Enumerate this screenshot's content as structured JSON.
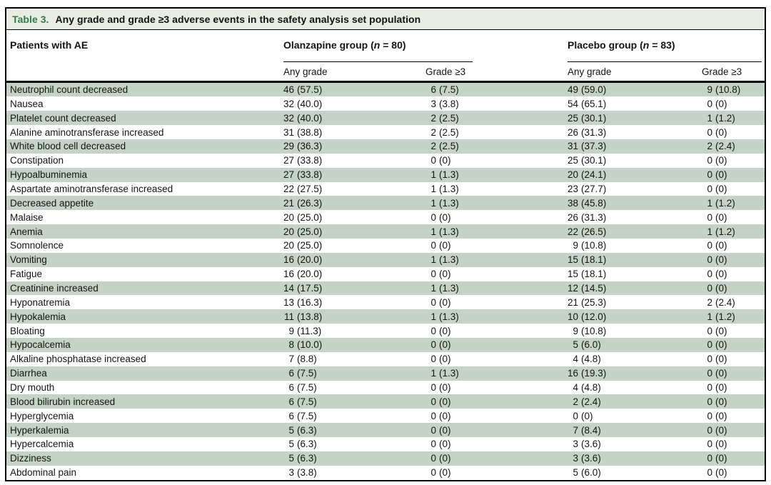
{
  "colors": {
    "caption_bar_bg": "#e8ece3",
    "table_label_green": "#2e7d4b",
    "row_stripe_green": "#c5d3c6",
    "rule_black": "#000000"
  },
  "table": {
    "label": "Table 3.",
    "title": "Any grade and grade ≥3 adverse events in the safety analysis set population",
    "col1_header": "Patients with AE",
    "groups": [
      {
        "prefix": "Olanzapine group (",
        "n": "n",
        "suffix": " = 80)"
      },
      {
        "prefix": "Placebo group (",
        "n": "n",
        "suffix": " = 83)"
      }
    ],
    "subheaders": [
      "Any grade",
      "Grade ≥3",
      "Any grade",
      "Grade ≥3"
    ],
    "rows": [
      {
        "ae": "Neutrophil count decreased",
        "values": [
          "46 (57.5)",
          "6 (7.5)",
          "49 (59.0)",
          "9 (10.8)"
        ]
      },
      {
        "ae": "Nausea",
        "values": [
          "32 (40.0)",
          "3 (3.8)",
          "54 (65.1)",
          "0 (0)"
        ]
      },
      {
        "ae": "Platelet count decreased",
        "values": [
          "32 (40.0)",
          "2 (2.5)",
          "25 (30.1)",
          "1 (1.2)"
        ]
      },
      {
        "ae": "Alanine aminotransferase increased",
        "values": [
          "31 (38.8)",
          "2 (2.5)",
          "26 (31.3)",
          "0 (0)"
        ]
      },
      {
        "ae": "White blood cell decreased",
        "values": [
          "29 (36.3)",
          "2 (2.5)",
          "31 (37.3)",
          "2 (2.4)"
        ]
      },
      {
        "ae": "Constipation",
        "values": [
          "27 (33.8)",
          "0 (0)",
          "25 (30.1)",
          "0 (0)"
        ]
      },
      {
        "ae": "Hypoalbuminemia",
        "values": [
          "27 (33.8)",
          "1 (1.3)",
          "20 (24.1)",
          "0 (0)"
        ]
      },
      {
        "ae": "Aspartate aminotransferase increased",
        "values": [
          "22 (27.5)",
          "1 (1.3)",
          "23 (27.7)",
          "0 (0)"
        ]
      },
      {
        "ae": "Decreased appetite",
        "values": [
          "21 (26.3)",
          "1 (1.3)",
          "38 (45.8)",
          "1 (1.2)"
        ]
      },
      {
        "ae": "Malaise",
        "values": [
          "20 (25.0)",
          "0 (0)",
          "26 (31.3)",
          "0 (0)"
        ]
      },
      {
        "ae": "Anemia",
        "values": [
          "20 (25.0)",
          "1 (1.3)",
          "22 (26.5)",
          "1 (1.2)"
        ]
      },
      {
        "ae": "Somnolence",
        "values": [
          "20 (25.0)",
          "0 (0)",
          "9 (10.8)",
          "0 (0)"
        ]
      },
      {
        "ae": "Vomiting",
        "values": [
          "16 (20.0)",
          "1 (1.3)",
          "15 (18.1)",
          "0 (0)"
        ]
      },
      {
        "ae": "Fatigue",
        "values": [
          "16 (20.0)",
          "0 (0)",
          "15 (18.1)",
          "0 (0)"
        ]
      },
      {
        "ae": "Creatinine increased",
        "values": [
          "14 (17.5)",
          "1 (1.3)",
          "12 (14.5)",
          "0 (0)"
        ]
      },
      {
        "ae": "Hyponatremia",
        "values": [
          "13 (16.3)",
          "0 (0)",
          "21 (25.3)",
          "2 (2.4)"
        ]
      },
      {
        "ae": "Hypokalemia",
        "values": [
          "11 (13.8)",
          "1 (1.3)",
          "10 (12.0)",
          "1 (1.2)"
        ]
      },
      {
        "ae": "Bloating",
        "values": [
          "9 (11.3)",
          "0 (0)",
          "9 (10.8)",
          "0 (0)"
        ]
      },
      {
        "ae": "Hypocalcemia",
        "values": [
          "8 (10.0)",
          "0 (0)",
          "5 (6.0)",
          "0 (0)"
        ]
      },
      {
        "ae": "Alkaline phosphatase increased",
        "values": [
          "7 (8.8)",
          "0 (0)",
          "4 (4.8)",
          "0 (0)"
        ]
      },
      {
        "ae": "Diarrhea",
        "values": [
          "6 (7.5)",
          "1 (1.3)",
          "16 (19.3)",
          "0 (0)"
        ]
      },
      {
        "ae": "Dry mouth",
        "values": [
          "6 (7.5)",
          "0 (0)",
          "4 (4.8)",
          "0 (0)"
        ]
      },
      {
        "ae": "Blood bilirubin increased",
        "values": [
          "6 (7.5)",
          "0 (0)",
          "2 (2.4)",
          "0 (0)"
        ]
      },
      {
        "ae": "Hyperglycemia",
        "values": [
          "6 (7.5)",
          "0 (0)",
          "0 (0)",
          "0 (0)"
        ]
      },
      {
        "ae": "Hyperkalemia",
        "values": [
          "5 (6.3)",
          "0 (0)",
          "7 (8.4)",
          "0 (0)"
        ]
      },
      {
        "ae": "Hypercalcemia",
        "values": [
          "5 (6.3)",
          "0 (0)",
          "3 (3.6)",
          "0 (0)"
        ]
      },
      {
        "ae": "Dizziness",
        "values": [
          "5 (6.3)",
          "0 (0)",
          "3 (3.6)",
          "0 (0)"
        ]
      },
      {
        "ae": "Abdominal pain",
        "values": [
          "3 (3.8)",
          "0 (0)",
          "5 (6.0)",
          "0 (0)"
        ]
      }
    ]
  }
}
